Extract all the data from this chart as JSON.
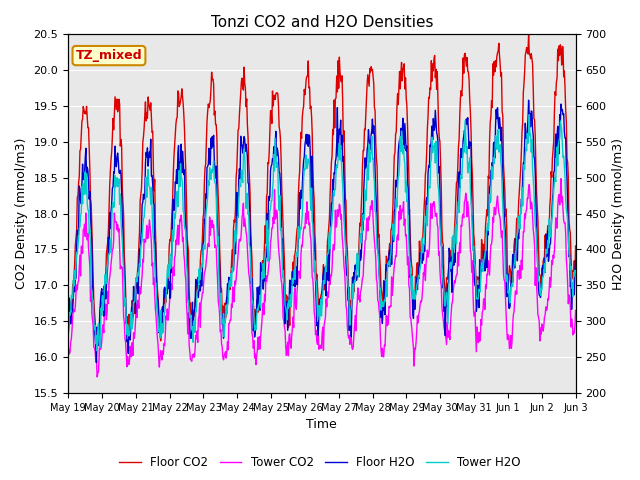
{
  "title": "Tonzi CO2 and H2O Densities",
  "xlabel": "Time",
  "ylabel_left": "CO2 Density (mmol/m3)",
  "ylabel_right": "H2O Density (mmol/m3)",
  "ylim_left": [
    15.5,
    20.5
  ],
  "ylim_right": [
    200,
    700
  ],
  "yticks_left": [
    15.5,
    16.0,
    16.5,
    17.0,
    17.5,
    18.0,
    18.5,
    19.0,
    19.5,
    20.0,
    20.5
  ],
  "yticks_right": [
    200,
    250,
    300,
    350,
    400,
    450,
    500,
    550,
    600,
    650,
    700
  ],
  "xtick_labels": [
    "May 19",
    "May 20",
    "May 21",
    "May 22",
    "May 23",
    "May 24",
    "May 25",
    "May 26",
    "May 27",
    "May 28",
    "May 29",
    "May 30",
    "May 31",
    "Jun 1",
    "Jun 2",
    "Jun 3"
  ],
  "colors": {
    "floor_co2": "#dd0000",
    "tower_co2": "#ff00ff",
    "floor_h2o": "#0000cc",
    "tower_h2o": "#00cccc"
  },
  "legend_labels": [
    "Floor CO2",
    "Tower CO2",
    "Floor H2O",
    "Tower H2O"
  ],
  "annotation_text": "TZ_mixed",
  "annotation_color": "#cc0000",
  "annotation_bg": "#ffffcc",
  "annotation_border": "#cc8800",
  "background_color": "#e8e8e8",
  "fig_bg": "#ffffff",
  "linewidth": 1.0
}
